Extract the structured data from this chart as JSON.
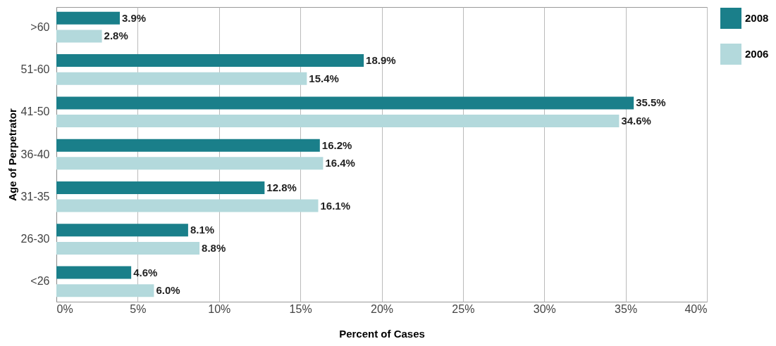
{
  "chart_data": {
    "type": "bar",
    "orientation": "horizontal",
    "xlabel": "Percent of Cases",
    "ylabel": "Age of Perpetrator",
    "categories": [
      ">60",
      "51-60",
      "41-50",
      "36-40",
      "31-35",
      "26-30",
      "<26"
    ],
    "series": [
      {
        "name": "2008",
        "color": "#1a7f8a",
        "values": [
          3.9,
          18.9,
          35.5,
          16.2,
          12.8,
          8.1,
          4.6
        ],
        "value_labels": [
          "3.9%",
          "18.9%",
          "35.5%",
          "16.2%",
          "12.8%",
          "8.1%",
          "4.6%"
        ]
      },
      {
        "name": "2006",
        "color": "#b3d9dc",
        "values": [
          2.8,
          15.4,
          34.6,
          16.4,
          16.1,
          8.8,
          6.0
        ],
        "value_labels": [
          "2.8%",
          "15.4%",
          "34.6%",
          "16.4%",
          "16.1%",
          "8.8%",
          "6.0%"
        ]
      }
    ],
    "xlim": [
      0,
      40
    ],
    "xticks": [
      {
        "value": 0,
        "label": "0%"
      },
      {
        "value": 5,
        "label": "5%"
      },
      {
        "value": 10,
        "label": "10%"
      },
      {
        "value": 15,
        "label": "15%"
      },
      {
        "value": 20,
        "label": "20%"
      },
      {
        "value": 25,
        "label": "25%"
      },
      {
        "value": 30,
        "label": "30%"
      },
      {
        "value": 35,
        "label": "35%"
      },
      {
        "value": 40,
        "label": "40%"
      }
    ],
    "grid": "x",
    "legend": "top right"
  }
}
